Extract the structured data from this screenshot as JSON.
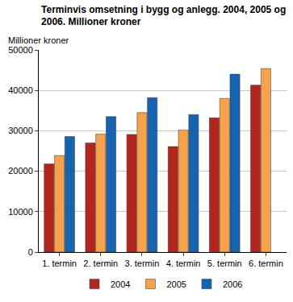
{
  "chart_data": {
    "type": "bar",
    "title": "Terminvis omsetning i bygg og anlegg. 2004, 2005 og\n2006. Millioner kroner",
    "y_label": "Millioner kroner",
    "categories": [
      "1. termin",
      "2. termin",
      "3. termin",
      "4. termin",
      "5. termin",
      "6. termin"
    ],
    "series": [
      {
        "name": "2004",
        "color": "#b3261e",
        "values": [
          21800,
          27000,
          29100,
          26100,
          33200,
          41300
        ]
      },
      {
        "name": "2005",
        "color": "#f5a24b",
        "values": [
          23900,
          29200,
          34500,
          30200,
          38000,
          45400
        ]
      },
      {
        "name": "2006",
        "color": "#1763b0",
        "values": [
          28600,
          33500,
          38200,
          34000,
          44000,
          null
        ]
      }
    ],
    "ylim": [
      0,
      50000
    ],
    "yticks": [
      0,
      10000,
      20000,
      30000,
      40000,
      50000
    ],
    "grid": true,
    "legend": "bottom"
  }
}
